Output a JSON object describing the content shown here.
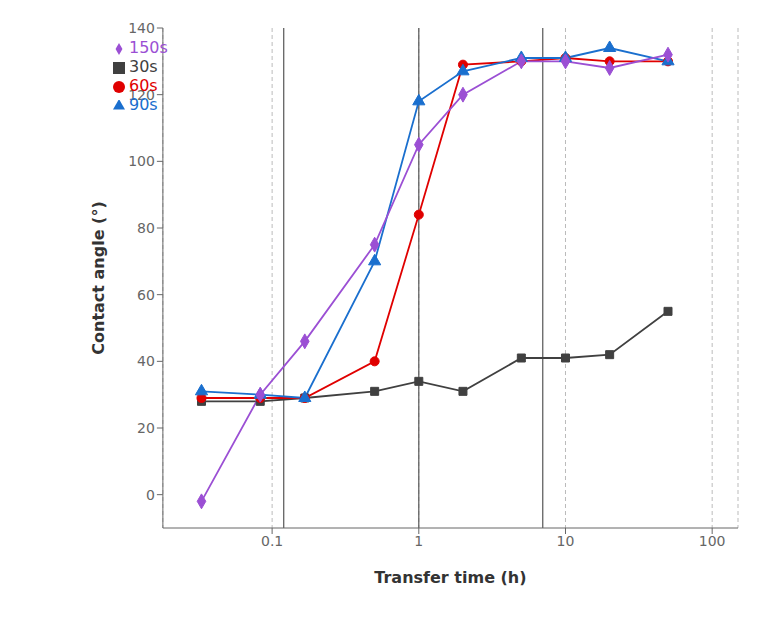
{
  "chart_data": {
    "type": "line",
    "xlabel": "Transfer time (h)",
    "ylabel": "Contact angle (°)",
    "log": "x",
    "xlim": [
      0.018,
      150
    ],
    "ylim": [
      -10,
      140
    ],
    "xticks": [
      0.1,
      1,
      10,
      100
    ],
    "yticks": [
      0,
      20,
      40,
      60,
      80,
      100,
      120,
      140
    ],
    "grid": "x",
    "legend": "upper left",
    "vlines": [
      0.12,
      1.0,
      7.0
    ],
    "x": [
      0.033,
      0.083,
      0.167,
      0.5,
      1.0,
      2.0,
      5.0,
      10.0,
      20.0,
      50.0
    ],
    "series": [
      {
        "name": "30s",
        "color": "#404040",
        "marker": "square",
        "values": [
          28,
          28,
          29,
          31,
          34,
          31,
          41,
          41,
          42,
          55
        ]
      },
      {
        "name": "60s",
        "color": "#e00000",
        "marker": "circle",
        "values": [
          29,
          29,
          29,
          40,
          84,
          129,
          130,
          131,
          130,
          130
        ]
      },
      {
        "name": "90s",
        "color": "#1a6fce",
        "marker": "triangle",
        "values": [
          31,
          30,
          29,
          70,
          118,
          127,
          131,
          131,
          134,
          130
        ]
      },
      {
        "name": "150s",
        "color": "#9b4fd4",
        "marker": "diamond",
        "values": [
          -2,
          30,
          46,
          75,
          105,
          120,
          130,
          130,
          128,
          132
        ]
      }
    ]
  }
}
